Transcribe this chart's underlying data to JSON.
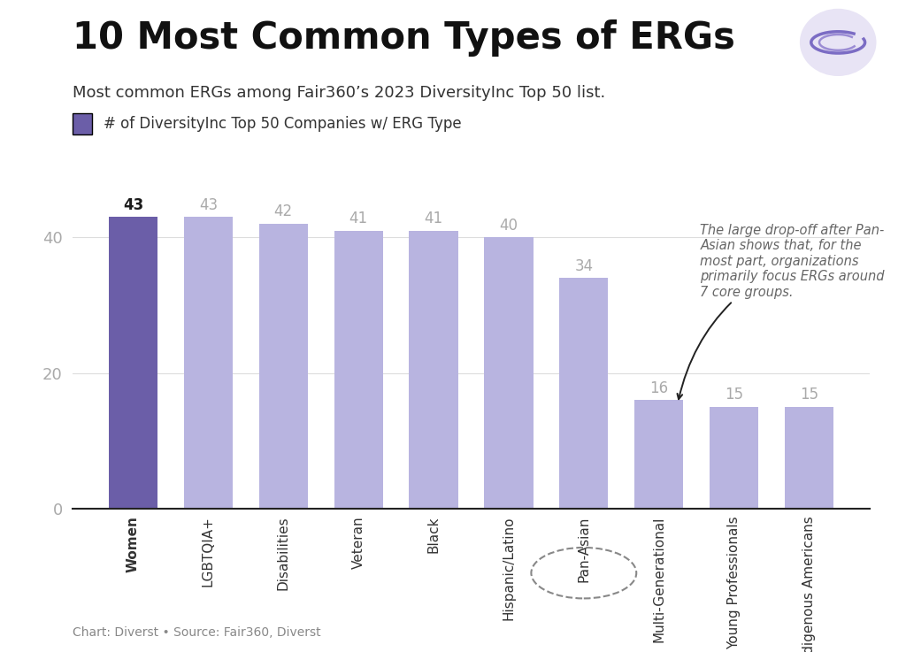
{
  "title": "10 Most Common Types of ERGs",
  "subtitle": "Most common ERGs among Fair360’s 2023 DiversityInc Top 50 list.",
  "legend_label": "# of DiversityInc Top 50 Companies w/ ERG Type",
  "footer": "Chart: Diverst • Source: Fair360, Diverst",
  "categories": [
    "Women",
    "LGBTQIA+",
    "Disabilities",
    "Veteran",
    "Black",
    "Hispanic/Latino",
    "Pan-Asian",
    "Multi-Generational",
    "Young Professionals",
    "Indigenous Americans"
  ],
  "values": [
    43,
    43,
    42,
    41,
    41,
    40,
    34,
    16,
    15,
    15
  ],
  "bar_color_first": "#6B5EA8",
  "bar_color_rest": "#B8B4E0",
  "value_color_first": "#1a1a1a",
  "value_color_rest": "#aaaaaa",
  "ytick_color": "#aaaaaa",
  "xtick_color": "#333333",
  "background_color": "#ffffff",
  "yticks": [
    0,
    20,
    40
  ],
  "ylim": [
    0,
    50
  ],
  "annotation_text": "The large drop-off after Pan-\nAsian shows that, for the\nmost part, organizations\nprimarily focus ERGs around\n7 core groups.",
  "annotation_color": "#666666",
  "title_fontsize": 30,
  "subtitle_fontsize": 13,
  "legend_fontsize": 12,
  "value_fontsize": 12,
  "axis_tick_fontsize": 11,
  "ytick_fontsize": 13,
  "footer_fontsize": 10,
  "annotation_fontsize": 10.5
}
